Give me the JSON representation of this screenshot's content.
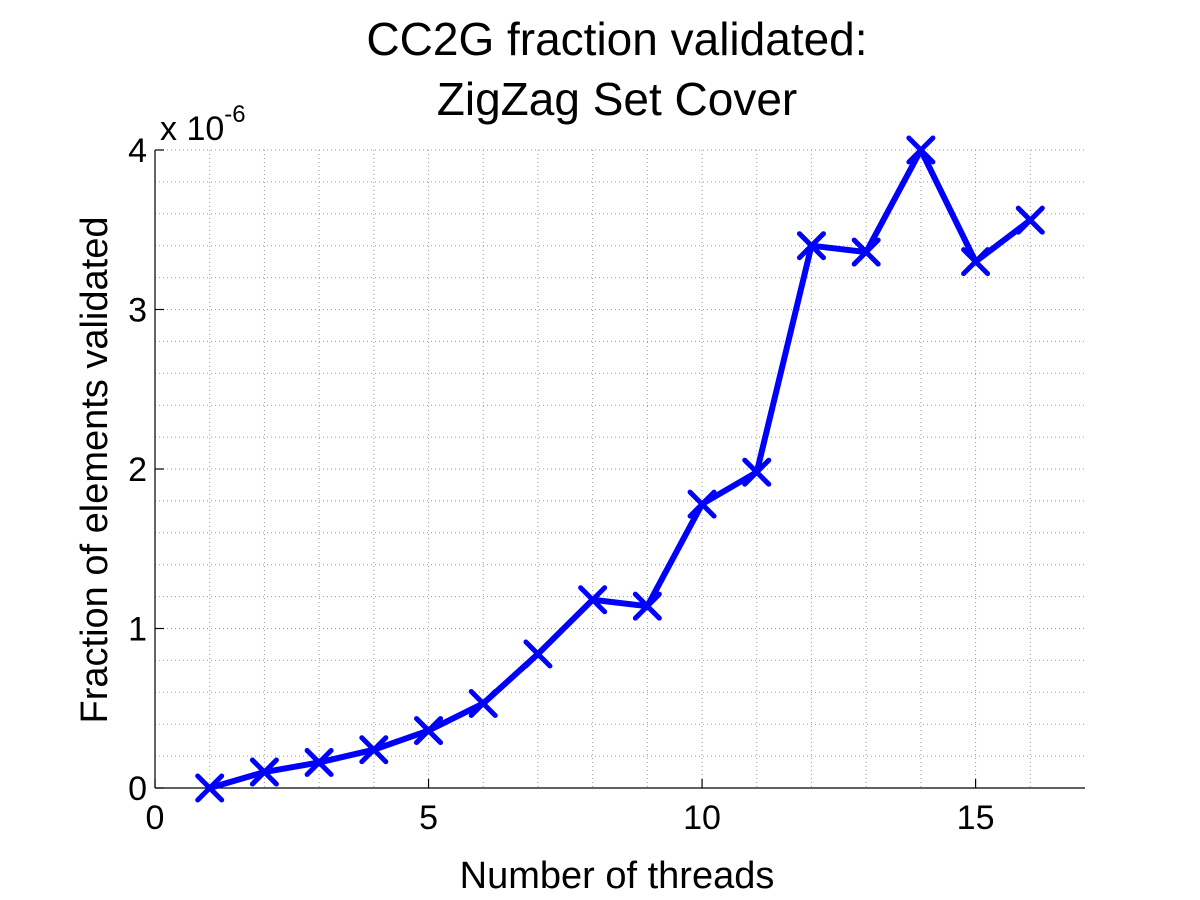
{
  "chart_data": {
    "type": "line",
    "title_lines": [
      "CC2G fraction validated:",
      "ZigZag Set Cover"
    ],
    "xlabel": "Number of threads",
    "ylabel": "Fraction of elements validated",
    "y_exponent_base": "x 10",
    "y_exponent_power": "-6",
    "xlim": [
      0,
      17
    ],
    "ylim": [
      0,
      4
    ],
    "xticks": [
      0,
      5,
      10,
      15
    ],
    "yticks": [
      0,
      1,
      2,
      3,
      4
    ],
    "x_minor_step": 1,
    "y_minor_step": 0.2,
    "grid": true,
    "line_color": "#0000ff",
    "marker": "x",
    "series": [
      {
        "x": [
          1,
          2,
          3,
          4,
          5,
          6,
          7,
          8,
          9,
          10,
          11,
          12,
          13,
          14,
          15,
          16
        ],
        "y": [
          0.0,
          0.1,
          0.16,
          0.24,
          0.36,
          0.53,
          0.84,
          1.18,
          1.14,
          1.78,
          1.98,
          3.4,
          3.36,
          4.0,
          3.3,
          3.56
        ]
      }
    ]
  }
}
